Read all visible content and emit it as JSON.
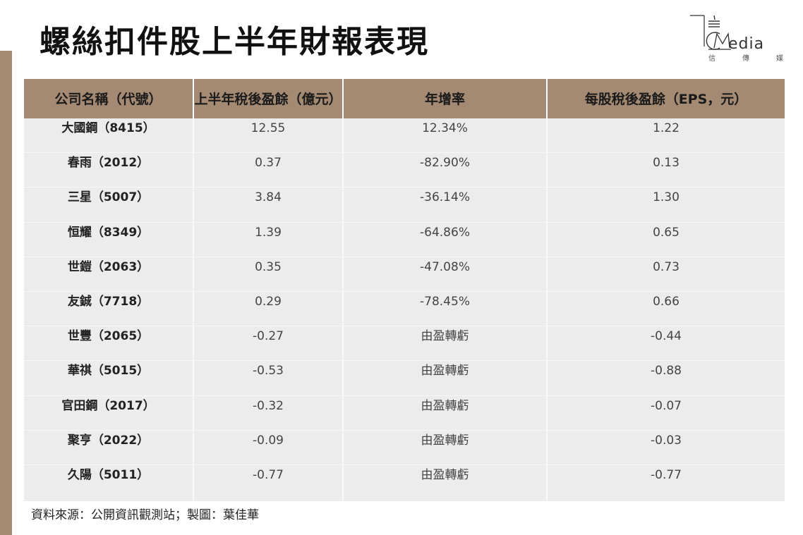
{
  "title": "螺絲扣件股上半年財報表現",
  "logo": {
    "word": "edia",
    "sub": [
      "信",
      "傳",
      "媒"
    ]
  },
  "table": {
    "headers": [
      "公司名稱（代號）",
      "上半年稅後盈餘（億元）",
      "年增率",
      "每股稅後盈餘（EPS，元）"
    ],
    "rows": [
      [
        "大國鋼（8415）",
        "12.55",
        "12.34%",
        "1.22"
      ],
      [
        "春雨（2012）",
        "0.37",
        "-82.90%",
        "0.13"
      ],
      [
        "三星（5007）",
        "3.84",
        "-36.14%",
        "1.30"
      ],
      [
        "恒耀（8349）",
        "1.39",
        "-64.86%",
        "0.65"
      ],
      [
        "世鎧（2063）",
        "0.35",
        "-47.08%",
        "0.73"
      ],
      [
        "友鋮（7718）",
        "0.29",
        "-78.45%",
        "0.66"
      ],
      [
        "世豐（2065）",
        "-0.27",
        "由盈轉虧",
        "-0.44"
      ],
      [
        "華祺（5015）",
        "-0.53",
        "由盈轉虧",
        "-0.88"
      ],
      [
        "官田鋼（2017）",
        "-0.32",
        "由盈轉虧",
        "-0.07"
      ],
      [
        "聚亨（2022）",
        "-0.09",
        "由盈轉虧",
        "-0.03"
      ],
      [
        "久陽（5011）",
        "-0.77",
        "由盈轉虧",
        "-0.77"
      ]
    ]
  },
  "source": "資料來源：公開資訊觀測站；製圖：葉佳華",
  "colors": {
    "accent": "#a48a73",
    "row_bg": "#ececec"
  }
}
